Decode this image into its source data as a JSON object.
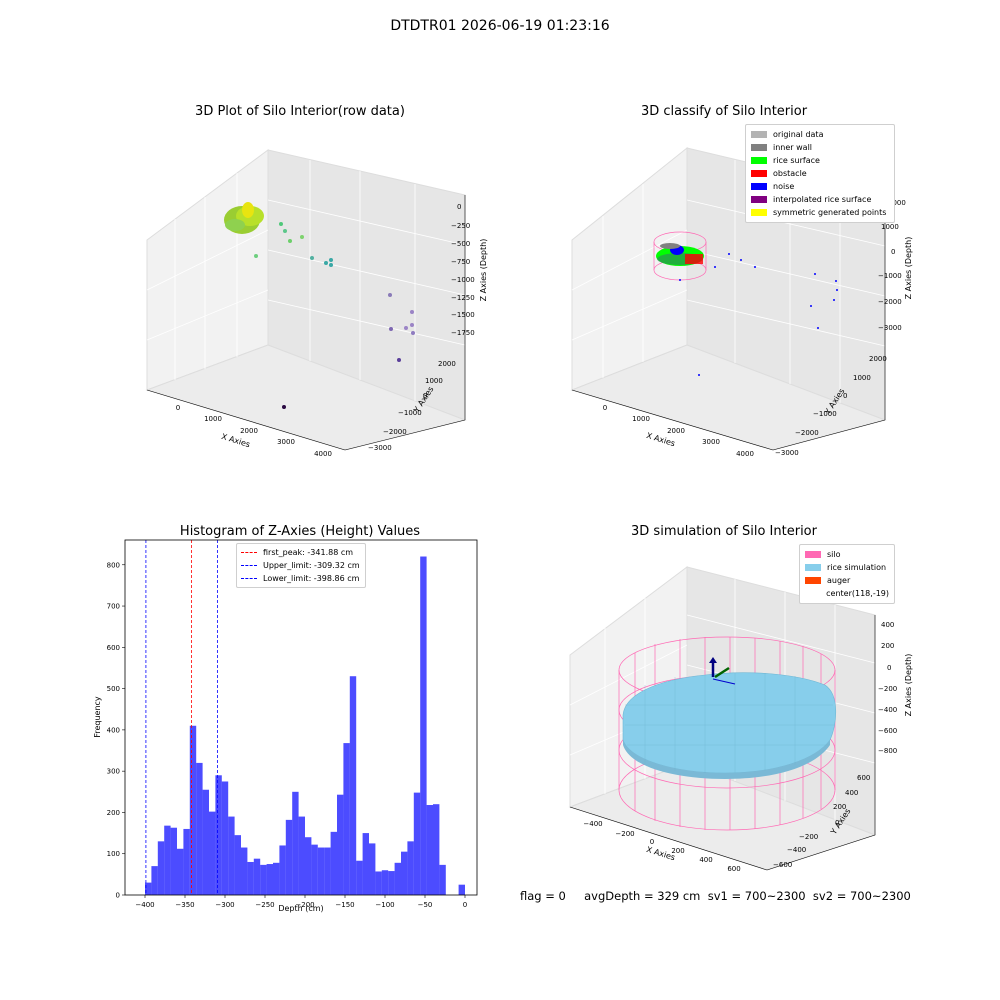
{
  "suptitle": "DTDTR01 2026-06-19 01:23:16",
  "panels": {
    "raw": {
      "title": "3D Plot of Silo Interior(row data)",
      "xlabel": "X Axies",
      "ylabel": "Y Axies",
      "zlabel": "Z Axies (Depth)",
      "xticks": [
        "0",
        "1000",
        "2000",
        "3000",
        "4000"
      ],
      "yticks": [
        "−3000",
        "−2000",
        "−1000",
        "0",
        "1000",
        "2000"
      ],
      "zticks": [
        "0",
        "−250",
        "−500",
        "−750",
        "−1000",
        "−1250",
        "−1500",
        "−1750"
      ]
    },
    "classify": {
      "title": "3D classify of Silo Interior",
      "xlabel": "X Axies",
      "ylabel": "Y Axies",
      "zlabel": "Z Axies (Depth)",
      "xticks": [
        "0",
        "1000",
        "2000",
        "3000",
        "4000"
      ],
      "yticks": [
        "−3000",
        "−2000",
        "−1000",
        "0",
        "1000",
        "2000"
      ],
      "zticks": [
        "2000",
        "1000",
        "0",
        "−1000",
        "−2000",
        "−3000"
      ],
      "legend": [
        {
          "label": "original data",
          "color": "#b3b3b3"
        },
        {
          "label": "inner wall",
          "color": "#808080"
        },
        {
          "label": "rice surface",
          "color": "#00ff00"
        },
        {
          "label": "obstacle",
          "color": "#ff0000"
        },
        {
          "label": "noise",
          "color": "#0000ff"
        },
        {
          "label": "interpolated rice surface",
          "color": "#800080"
        },
        {
          "label": "symmetric generated points",
          "color": "#ffff00"
        }
      ]
    },
    "histogram": {
      "title": "Histogram of Z-Axies (Height) Values",
      "xlabel": "Depth (cm)",
      "ylabel": "Frequency",
      "legend": [
        {
          "label": "first_peak: -341.88 cm",
          "color": "#ff0000"
        },
        {
          "label": "Upper_limit: -309.32 cm",
          "color": "#0000ff"
        },
        {
          "label": "Lower_limit: -398.86 cm",
          "color": "#0000ff"
        }
      ]
    },
    "simulation": {
      "title": "3D simulation of Silo Interior",
      "xlabel": "X Axies",
      "ylabel": "Y Axies",
      "zlabel": "Z Axies (Depth)",
      "xticks": [
        "−400",
        "−200",
        "0",
        "200",
        "400",
        "600"
      ],
      "yticks": [
        "−600",
        "−400",
        "−200",
        "0",
        "200",
        "400",
        "600"
      ],
      "zticks": [
        "400",
        "200",
        "0",
        "−200",
        "−400",
        "−600",
        "−800"
      ],
      "legend": [
        {
          "label": "silo",
          "color": "#ff69b4"
        },
        {
          "label": "rice simulation",
          "color": "#87ceeb"
        },
        {
          "label": "auger",
          "color": "#ff4500"
        },
        {
          "label": "center(118,-19)",
          "color": ""
        }
      ]
    }
  },
  "footer": "flag = 0     avgDepth = 329 cm  sv1 = 700~2300  sv2 = 700~2300",
  "chart_data": [
    {
      "type": "bar",
      "title": "Histogram of Z-Axies (Height) Values",
      "xlabel": "Depth (cm)",
      "ylabel": "Frequency",
      "bin_start": -400,
      "bin_width": 8,
      "values": [
        30,
        70,
        130,
        168,
        163,
        112,
        160,
        410,
        320,
        255,
        202,
        290,
        275,
        190,
        145,
        115,
        80,
        88,
        73,
        75,
        78,
        120,
        182,
        250,
        190,
        140,
        122,
        115,
        115,
        153,
        243,
        368,
        530,
        83,
        150,
        125,
        57,
        60,
        58,
        78,
        105,
        130,
        248,
        820,
        218,
        220,
        73,
        0,
        0,
        25
      ],
      "xlim": [
        -425,
        15
      ],
      "ylim": [
        0,
        860
      ],
      "xticks": [
        -400,
        -350,
        -300,
        -250,
        -200,
        -150,
        -100,
        -50,
        0
      ],
      "yticks": [
        0,
        100,
        200,
        300,
        400,
        500,
        600,
        700,
        800
      ],
      "bar_color": "#0000ff",
      "vlines": [
        {
          "name": "first_peak",
          "x": -341.88,
          "color": "#ff0000"
        },
        {
          "name": "Upper_limit",
          "x": -309.32,
          "color": "#0000ff"
        },
        {
          "name": "Lower_limit",
          "x": -398.86,
          "color": "#0000ff"
        }
      ],
      "legend_position": "top-center",
      "grid": false
    }
  ]
}
